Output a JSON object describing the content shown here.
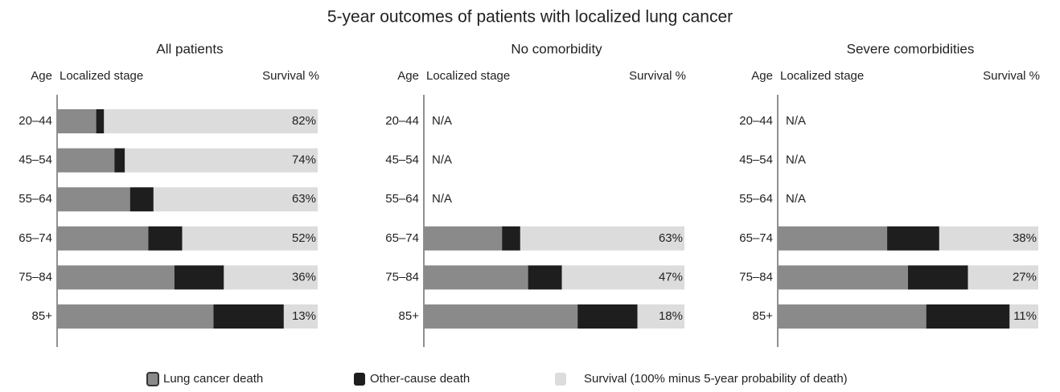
{
  "title": "5-year outcomes of patients with localized lung cancer",
  "chart_data": [
    {
      "type": "bar",
      "orientation": "horizontal",
      "stacked": true,
      "title": "All patients",
      "category_label": "Age",
      "x_label": "Localized stage",
      "value_header": "Survival %",
      "categories": [
        "20–44",
        "45–54",
        "55–64",
        "65–74",
        "75–84",
        "85+"
      ],
      "xlim": [
        0,
        100
      ],
      "series": [
        {
          "name": "Lung cancer death",
          "color": "#8a8a8a",
          "values": [
            15,
            22,
            28,
            35,
            45,
            60
          ]
        },
        {
          "name": "Other-cause death",
          "color": "#1e1e1e",
          "values": [
            3,
            4,
            9,
            13,
            19,
            27
          ]
        },
        {
          "name": "Survival (100% minus 5-year probability of death)",
          "color": "#dcdcdc",
          "values": [
            82,
            74,
            63,
            52,
            36,
            13
          ],
          "value_labels": [
            "82%",
            "74%",
            "63%",
            "52%",
            "36%",
            "13%"
          ]
        }
      ]
    },
    {
      "type": "bar",
      "orientation": "horizontal",
      "stacked": true,
      "title": "No comorbidity",
      "category_label": "Age",
      "x_label": "Localized stage",
      "value_header": "Survival %",
      "categories": [
        "20–44",
        "45–54",
        "55–64",
        "65–74",
        "75–84",
        "85+"
      ],
      "xlim": [
        0,
        100
      ],
      "series": [
        {
          "name": "Lung cancer death",
          "color": "#8a8a8a",
          "values": [
            null,
            null,
            null,
            30,
            40,
            59
          ]
        },
        {
          "name": "Other-cause death",
          "color": "#1e1e1e",
          "values": [
            null,
            null,
            null,
            7,
            13,
            23
          ]
        },
        {
          "name": "Survival (100% minus 5-year probability of death)",
          "color": "#dcdcdc",
          "values": [
            null,
            null,
            null,
            63,
            47,
            18
          ],
          "value_labels": [
            "N/A",
            "N/A",
            "N/A",
            "63%",
            "47%",
            "18%"
          ]
        }
      ]
    },
    {
      "type": "bar",
      "orientation": "horizontal",
      "stacked": true,
      "title": "Severe comorbidities",
      "category_label": "Age",
      "x_label": "Localized stage",
      "value_header": "Survival %",
      "categories": [
        "20–44",
        "45–54",
        "55–64",
        "65–74",
        "75–84",
        "85+"
      ],
      "xlim": [
        0,
        100
      ],
      "series": [
        {
          "name": "Lung cancer death",
          "color": "#8a8a8a",
          "values": [
            null,
            null,
            null,
            42,
            50,
            57
          ]
        },
        {
          "name": "Other-cause death",
          "color": "#1e1e1e",
          "values": [
            null,
            null,
            null,
            20,
            23,
            32
          ]
        },
        {
          "name": "Survival (100% minus 5-year probability of death)",
          "color": "#dcdcdc",
          "values": [
            null,
            null,
            null,
            38,
            27,
            11
          ],
          "value_labels": [
            "N/A",
            "N/A",
            "N/A",
            "38%",
            "27%",
            "11%"
          ]
        }
      ]
    }
  ]
}
